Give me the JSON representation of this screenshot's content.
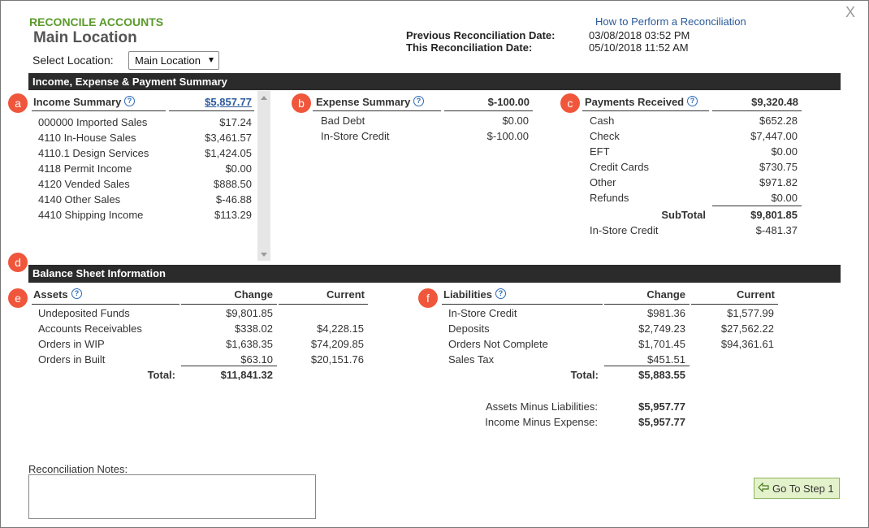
{
  "header": {
    "section_label": "RECONCILE ACCOUNTS",
    "title": "Main Location",
    "select_label": "Select Location:",
    "select_value": "Main Location",
    "help_link": "How to Perform a Reconciliation",
    "close": "X",
    "dates": [
      {
        "label": "Previous Reconciliation Date:",
        "value": "03/08/2018 03:52 PM"
      },
      {
        "label": "This Reconciliation Date:",
        "value": "05/10/2018 11:52 AM"
      }
    ]
  },
  "help_icon": "?",
  "summary": {
    "title": "Income, Expense & Payment Summary",
    "income": {
      "badge": "a",
      "title": "Income Summary",
      "total": "$5,857.77",
      "rows": [
        [
          "000000 Imported Sales",
          "$17.24"
        ],
        [
          "4110 In-House Sales",
          "$3,461.57"
        ],
        [
          "4110.1 Design Services",
          "$1,424.05"
        ],
        [
          "4118 Permit Income",
          "$0.00"
        ],
        [
          "4120 Vended Sales",
          "$888.50"
        ],
        [
          "4140 Other Sales",
          "$-46.88"
        ],
        [
          "4410 Shipping Income",
          "$113.29"
        ]
      ]
    },
    "expense": {
      "badge": "b",
      "title": "Expense Summary",
      "total": "$-100.00",
      "rows": [
        [
          "Bad Debt",
          "$0.00"
        ],
        [
          "In-Store Credit",
          "$-100.00"
        ]
      ]
    },
    "payments": {
      "badge": "c",
      "title": "Payments Received",
      "total": "$9,320.48",
      "rows": [
        [
          "Cash",
          "$652.28"
        ],
        [
          "Check",
          "$7,447.00"
        ],
        [
          "EFT",
          "$0.00"
        ],
        [
          "Credit Cards",
          "$730.75"
        ],
        [
          "Other",
          "$971.82"
        ],
        [
          "Refunds",
          "$0.00"
        ]
      ],
      "subtotal_label": "SubTotal",
      "subtotal": "$9,801.85",
      "extra_rows": [
        [
          "In-Store Credit",
          "$-481.37"
        ]
      ]
    }
  },
  "balance": {
    "badge": "d",
    "title": "Balance Sheet Information",
    "assets": {
      "badge": "e",
      "title": "Assets",
      "columns": [
        "Change",
        "Current"
      ],
      "rows": [
        [
          "Undeposited Funds",
          "$9,801.85",
          null
        ],
        [
          "Accounts Receivables",
          "$338.02",
          "$4,228.15"
        ],
        [
          "Orders in WIP",
          "$1,638.35",
          "$74,209.85"
        ],
        [
          "Orders in Built",
          "$63.10",
          "$20,151.76"
        ]
      ],
      "total_label": "Total:",
      "total": "$11,841.32"
    },
    "liabilities": {
      "badge": "f",
      "title": "Liabilities",
      "columns": [
        "Change",
        "Current"
      ],
      "rows": [
        [
          "In-Store Credit",
          "$981.36",
          "$1,577.99"
        ],
        [
          "Deposits",
          "$2,749.23",
          "$27,562.22"
        ],
        [
          "Orders Not Complete",
          "$1,701.45",
          "$94,361.61"
        ],
        [
          "Sales Tax",
          "$451.51",
          null
        ]
      ],
      "total_label": "Total:",
      "total": "$5,883.55"
    },
    "checks": [
      [
        "Assets Minus Liabilities:",
        "$5,957.77"
      ],
      [
        "Income Minus Expense:",
        "$5,957.77"
      ]
    ]
  },
  "notes_label": "Reconciliation Notes:",
  "step_button": "Go To Step 1"
}
